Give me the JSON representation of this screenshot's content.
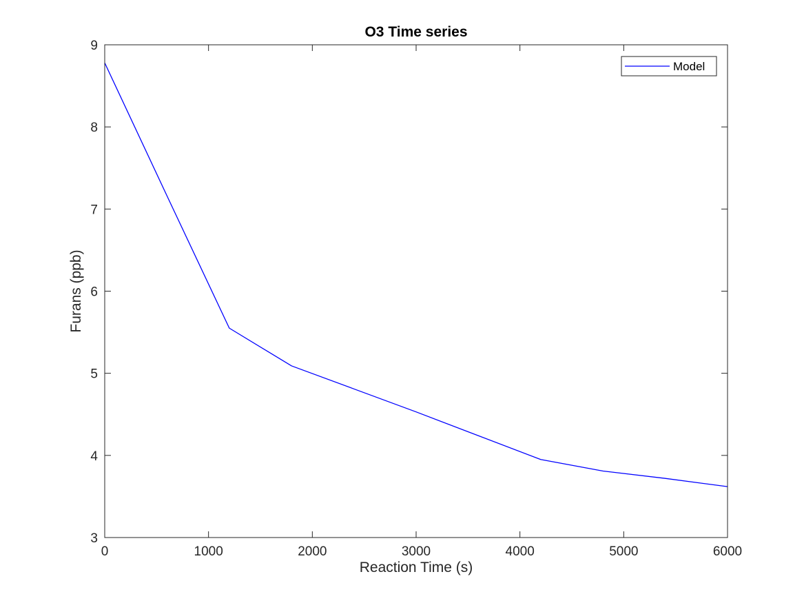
{
  "chart_data": {
    "type": "line",
    "title": "O3 Time series",
    "xlabel": "Reaction Time (s)",
    "ylabel": "Furans (ppb)",
    "xlim": [
      0,
      6000
    ],
    "ylim": [
      3,
      9
    ],
    "xticks": [
      0,
      1000,
      2000,
      3000,
      4000,
      5000,
      6000
    ],
    "yticks": [
      3,
      4,
      5,
      6,
      7,
      8,
      9
    ],
    "grid": false,
    "legend_position": "top-right",
    "series": [
      {
        "name": "Model",
        "color": "#0000ff",
        "x": [
          0,
          600,
          1200,
          1800,
          2400,
          3000,
          3600,
          4200,
          4800,
          5400,
          6000
        ],
        "y": [
          8.78,
          7.16,
          5.55,
          5.09,
          4.81,
          4.53,
          4.24,
          3.95,
          3.81,
          3.72,
          3.62
        ]
      }
    ]
  }
}
